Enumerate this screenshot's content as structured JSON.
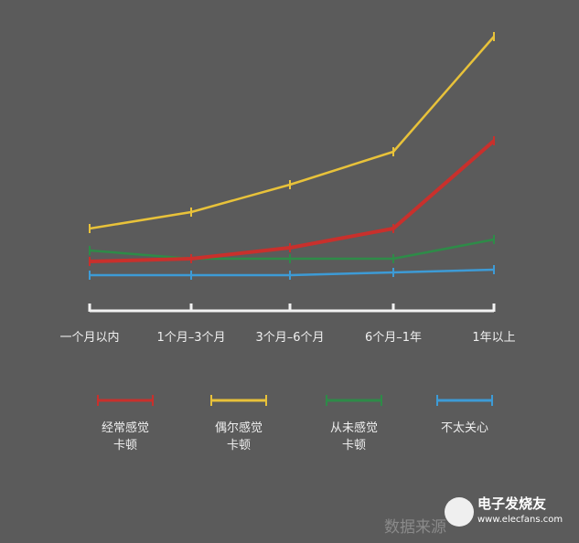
{
  "chart_data": {
    "type": "line",
    "title": "",
    "xlabel": "",
    "ylabel": "",
    "categories": [
      "一个月以内",
      "1个月–3个月",
      "3个月–6个月",
      "6个月–1年",
      "1年以上"
    ],
    "ylim": [
      0,
      100
    ],
    "grid": false,
    "y_axis_visible": false,
    "legend_position": "bottom",
    "series": [
      {
        "name": "经常感觉\n卡顿",
        "label_lines": [
          "经常感觉",
          "卡顿"
        ],
        "color": "#c9302c",
        "values": [
          18,
          19,
          23,
          30,
          62
        ]
      },
      {
        "name": "偶尔感觉\n卡顿",
        "label_lines": [
          "偶尔感觉",
          "卡顿"
        ],
        "color": "#e8c23a",
        "values": [
          30,
          36,
          46,
          58,
          100
        ]
      },
      {
        "name": "从未感觉\n卡顿",
        "label_lines": [
          "从未感觉",
          "卡顿"
        ],
        "color": "#2e8b48",
        "values": [
          22,
          19,
          19,
          19,
          26
        ]
      },
      {
        "name": "不太关心",
        "label_lines": [
          "不太关心",
          ""
        ],
        "color": "#3d9bd6",
        "values": [
          13,
          13,
          13,
          14,
          15
        ]
      }
    ]
  },
  "source_note": "数据来源",
  "watermark": {
    "name": "电子发烧友",
    "url": "www.elecfans.com"
  }
}
